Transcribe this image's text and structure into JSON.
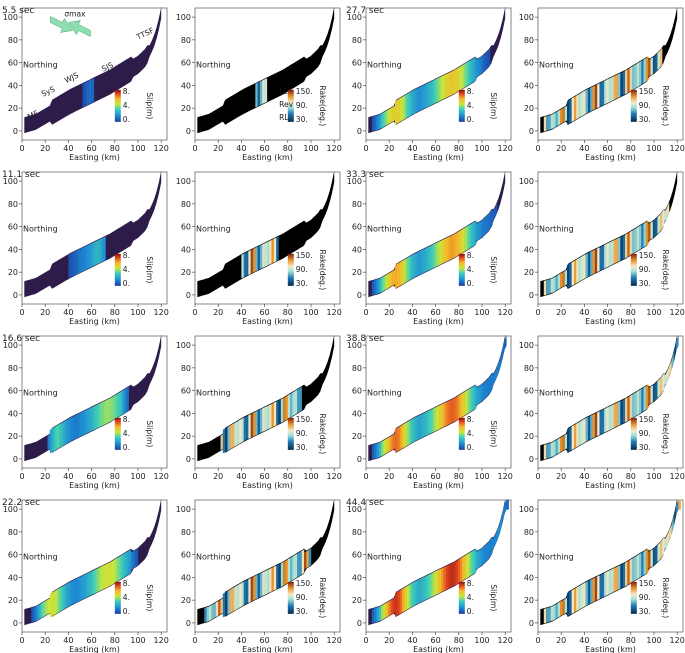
{
  "axes": {
    "xlabel": "Easting (km)",
    "ylabel": "Northing",
    "x_ticks": [
      "0",
      "20",
      "40",
      "60",
      "80",
      "100",
      "120"
    ],
    "y_ticks": [
      "0",
      "20",
      "40",
      "60",
      "80",
      "100"
    ],
    "x_range": [
      0,
      125
    ],
    "y_range": [
      -8,
      108
    ]
  },
  "time_labels": [
    "5.5 sec",
    "11.1 sec",
    "16.6 sec",
    "22.2 sec",
    "27.7 sec",
    "33.3 sec",
    "38.8 sec",
    "44.4 sec"
  ],
  "slip_colorbar": {
    "label": "Slip(m)",
    "ticks": [
      "8.",
      "4.",
      "0."
    ]
  },
  "rake_colorbar": {
    "label": "Rake(deg.)",
    "ticks": [
      "150.",
      "90.",
      "30."
    ]
  },
  "fault_labels": [
    "MF",
    "SyS",
    "WJS",
    "SJS",
    "TTSF"
  ],
  "stress_label": "σmax",
  "rake_annotations": [
    "LL",
    "Rev",
    "RL"
  ],
  "colors": {
    "background_fault": "#2d1b4a",
    "unruptured_rake": "#000000",
    "arrow_fill": "#8fe0b0"
  }
}
